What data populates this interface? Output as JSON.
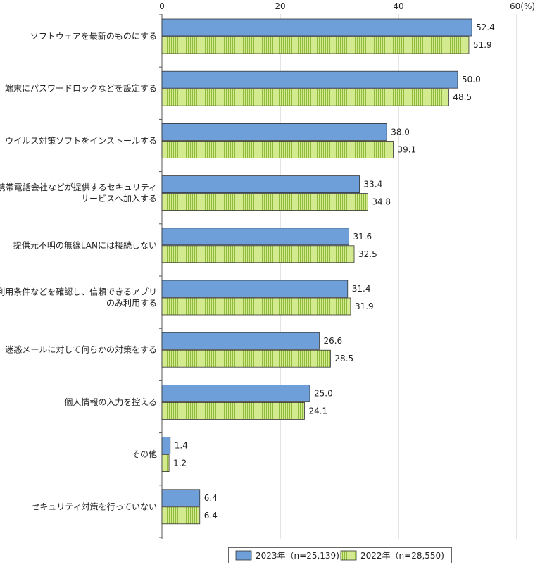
{
  "chart_data": {
    "type": "bar",
    "orientation": "horizontal",
    "categories": [
      [
        "ソフトウェアを最新のものにする"
      ],
      [
        "端末にパスワードロックなどを設定する"
      ],
      [
        "ウイルス対策ソフトをインストールする"
      ],
      [
        "携帯電話会社などが提供するセキュリティ",
        "サービスへ加入する"
      ],
      [
        "提供元不明の無線LANには接続しない"
      ],
      [
        "利用条件などを確認し、信頼できるアプリ",
        "のみ利用する"
      ],
      [
        "迷惑メールに対して何らかの対策をする"
      ],
      [
        "個人情報の入力を控える"
      ],
      [
        "その他"
      ],
      [
        "セキュリティ対策を行っていない"
      ]
    ],
    "series": [
      {
        "name": "2023年（n=25,139)",
        "color": "#6f9fd8",
        "values": [
          52.4,
          50.0,
          38.0,
          33.4,
          31.6,
          31.4,
          26.6,
          25.0,
          1.4,
          6.4
        ]
      },
      {
        "name": "2022年（n=28,550)",
        "color": "#c5e07a",
        "values": [
          51.9,
          48.5,
          39.1,
          34.8,
          32.5,
          31.9,
          28.5,
          24.1,
          1.2,
          6.4
        ]
      }
    ],
    "xlim": [
      0,
      60
    ],
    "x_ticks": [
      "0",
      "20",
      "40",
      "60(%)"
    ],
    "x_tick_values": [
      0,
      20,
      40,
      60
    ],
    "grid": true,
    "legend_position": "bottom-right"
  }
}
